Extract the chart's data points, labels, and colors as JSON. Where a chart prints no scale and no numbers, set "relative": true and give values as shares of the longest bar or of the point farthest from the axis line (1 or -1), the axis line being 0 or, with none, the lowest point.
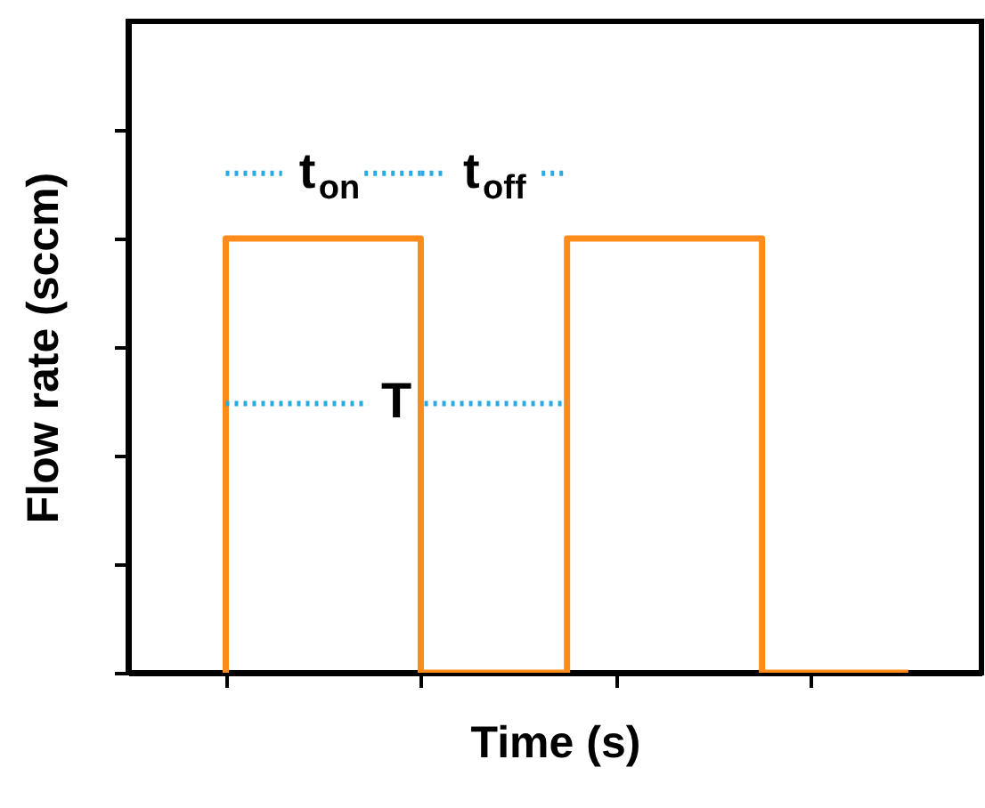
{
  "chart_data": {
    "type": "step",
    "relative": true,
    "xlabel": "Time (s)",
    "ylabel": "Flow rate (sccm)",
    "categories": [
      null,
      null,
      null,
      null,
      null,
      null,
      null,
      null,
      null,
      null,
      null,
      null,
      null,
      null,
      null
    ],
    "series": [
      {
        "color": "#ff8c1a",
        "values": [
          0,
          1,
          1,
          1,
          1,
          0,
          0,
          0,
          1,
          1,
          1,
          1,
          0,
          0,
          0
        ]
      }
    ],
    "annotations": [
      "t$_{on}$",
      "t$_{off}$",
      "T"
    ],
    "grid": false
  }
}
